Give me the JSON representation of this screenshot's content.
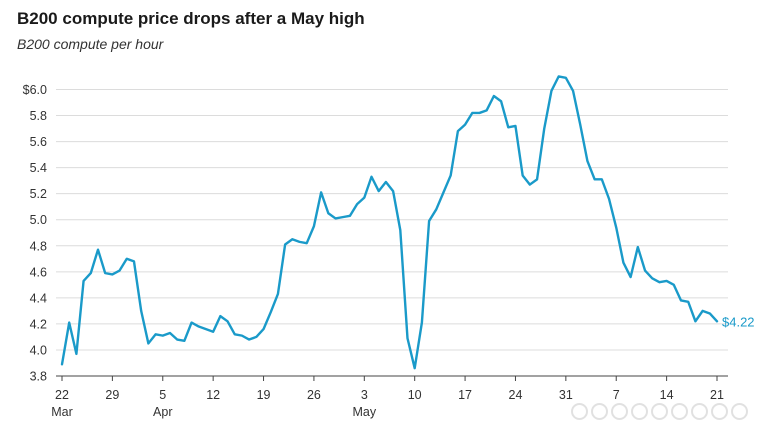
{
  "chart_data": {
    "type": "line",
    "title": "B200 compute price drops after a May high",
    "subtitle": "B200 compute per hour",
    "xlabel": "",
    "ylabel": "",
    "ylim": [
      3.8,
      6.1
    ],
    "y_ticks": [
      "$6.0",
      "5.8",
      "5.6",
      "5.4",
      "5.2",
      "5.0",
      "4.8",
      "4.6",
      "4.4",
      "4.2",
      "4.0",
      "3.8"
    ],
    "y_tick_values": [
      6.0,
      5.8,
      5.6,
      5.4,
      5.2,
      5.0,
      4.8,
      4.6,
      4.4,
      4.2,
      4.0,
      3.8
    ],
    "x_ticks": [
      {
        "day": 0,
        "label": "22",
        "month": "Mar"
      },
      {
        "day": 7,
        "label": "29",
        "month": ""
      },
      {
        "day": 14,
        "label": "5",
        "month": "Apr"
      },
      {
        "day": 21,
        "label": "12",
        "month": ""
      },
      {
        "day": 28,
        "label": "19",
        "month": ""
      },
      {
        "day": 35,
        "label": "26",
        "month": ""
      },
      {
        "day": 42,
        "label": "3",
        "month": "May"
      },
      {
        "day": 49,
        "label": "10",
        "month": ""
      },
      {
        "day": 56,
        "label": "17",
        "month": ""
      },
      {
        "day": 63,
        "label": "24",
        "month": ""
      },
      {
        "day": 70,
        "label": "31",
        "month": ""
      },
      {
        "day": 77,
        "label": "7",
        "month": ""
      },
      {
        "day": 84,
        "label": "14",
        "month": ""
      },
      {
        "day": 91,
        "label": "21",
        "month": ""
      }
    ],
    "grid": true,
    "line_color": "#1a9ac9",
    "end_label": "$4.22",
    "series": [
      {
        "values": [
          [
            0,
            3.89
          ],
          [
            1,
            4.21
          ],
          [
            2,
            3.97
          ],
          [
            3,
            4.53
          ],
          [
            4,
            4.59
          ],
          [
            5,
            4.77
          ],
          [
            6,
            4.59
          ],
          [
            7,
            4.58
          ],
          [
            8,
            4.61
          ],
          [
            9,
            4.7
          ],
          [
            10,
            4.68
          ],
          [
            11,
            4.3
          ],
          [
            12,
            4.05
          ],
          [
            13,
            4.12
          ],
          [
            14,
            4.11
          ],
          [
            15,
            4.13
          ],
          [
            16,
            4.08
          ],
          [
            17,
            4.07
          ],
          [
            18,
            4.21
          ],
          [
            19,
            4.18
          ],
          [
            20,
            4.16
          ],
          [
            21,
            4.14
          ],
          [
            22,
            4.26
          ],
          [
            23,
            4.22
          ],
          [
            24,
            4.12
          ],
          [
            25,
            4.11
          ],
          [
            26,
            4.08
          ],
          [
            27,
            4.1
          ],
          [
            28,
            4.16
          ],
          [
            29,
            4.29
          ],
          [
            30,
            4.43
          ],
          [
            31,
            4.81
          ],
          [
            32,
            4.85
          ],
          [
            33,
            4.83
          ],
          [
            34,
            4.82
          ],
          [
            35,
            4.95
          ],
          [
            36,
            5.21
          ],
          [
            37,
            5.05
          ],
          [
            38,
            5.01
          ],
          [
            39,
            5.02
          ],
          [
            40,
            5.03
          ],
          [
            41,
            5.12
          ],
          [
            42,
            5.17
          ],
          [
            43,
            5.33
          ],
          [
            44,
            5.22
          ],
          [
            45,
            5.29
          ],
          [
            46,
            5.22
          ],
          [
            47,
            4.92
          ],
          [
            48,
            4.09
          ],
          [
            49,
            3.86
          ],
          [
            50,
            4.21
          ],
          [
            51,
            4.99
          ],
          [
            52,
            5.08
          ],
          [
            53,
            5.21
          ],
          [
            54,
            5.34
          ],
          [
            55,
            5.68
          ],
          [
            56,
            5.73
          ],
          [
            57,
            5.82
          ],
          [
            58,
            5.82
          ],
          [
            59,
            5.84
          ],
          [
            60,
            5.95
          ],
          [
            61,
            5.91
          ],
          [
            62,
            5.71
          ],
          [
            63,
            5.72
          ],
          [
            64,
            5.34
          ],
          [
            65,
            5.27
          ],
          [
            66,
            5.31
          ],
          [
            67,
            5.7
          ],
          [
            68,
            5.99
          ],
          [
            69,
            6.1
          ],
          [
            70,
            6.09
          ],
          [
            71,
            5.99
          ],
          [
            72,
            5.73
          ],
          [
            73,
            5.45
          ],
          [
            74,
            5.31
          ],
          [
            75,
            5.31
          ],
          [
            76,
            5.16
          ],
          [
            77,
            4.94
          ],
          [
            78,
            4.67
          ],
          [
            79,
            4.56
          ],
          [
            80,
            4.79
          ],
          [
            81,
            4.61
          ],
          [
            82,
            4.55
          ],
          [
            83,
            4.52
          ],
          [
            84,
            4.53
          ],
          [
            85,
            4.5
          ],
          [
            86,
            4.38
          ],
          [
            87,
            4.37
          ],
          [
            88,
            4.22
          ],
          [
            89,
            4.3
          ],
          [
            90,
            4.28
          ],
          [
            91,
            4.22
          ]
        ]
      }
    ]
  }
}
